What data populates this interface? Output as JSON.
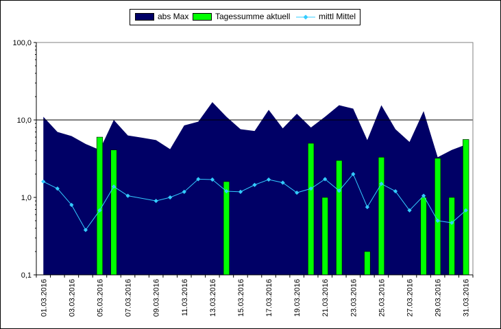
{
  "legend": {
    "items": [
      {
        "label": "abs Max",
        "color": "#000066"
      },
      {
        "label": "Tagessumme aktuell",
        "color": "#00ff00"
      },
      {
        "label": "mittl Mittel",
        "color": "#33ccff"
      }
    ]
  },
  "chart_data": {
    "type": "bar",
    "yscale": "log",
    "ylim": [
      0.1,
      100
    ],
    "y_tick_labels": [
      "0,1",
      "1,0",
      "10,0",
      "100,0"
    ],
    "grid": "horizontal at 10,0",
    "legend_position": "top",
    "x": [
      "01.03.2016",
      "02.03.2016",
      "03.03.2016",
      "04.03.2016",
      "05.03.2016",
      "06.03.2016",
      "07.03.2016",
      "08.03.2016",
      "09.03.2016",
      "10.03.2016",
      "11.03.2016",
      "12.03.2016",
      "13.03.2016",
      "14.03.2016",
      "15.03.2016",
      "16.03.2016",
      "17.03.2016",
      "18.03.2016",
      "19.03.2016",
      "20.03.2016",
      "21.03.2016",
      "22.03.2016",
      "23.03.2016",
      "24.03.2016",
      "25.03.2016",
      "26.03.2016",
      "27.03.2016",
      "28.03.2016",
      "29.03.2016",
      "30.03.2016",
      "31.03.2016"
    ],
    "x_tick_labels": [
      "01.03.2016",
      "03.03.2016",
      "05.03.2016",
      "07.03.2016",
      "09.03.2016",
      "11.03.2016",
      "13.03.2016",
      "15.03.2016",
      "17.03.2016",
      "19.03.2016",
      "21.03.2016",
      "23.03.2016",
      "25.03.2016",
      "27.03.2016",
      "29.03.2016",
      "31.03.2016"
    ],
    "series": [
      {
        "name": "abs Max",
        "type": "area",
        "color": "#000066",
        "values": [
          11,
          7,
          6.2,
          4.9,
          4.1,
          10,
          6.3,
          5.9,
          5.5,
          4.2,
          8.5,
          9.5,
          17,
          11,
          7.6,
          7.2,
          13.5,
          7.8,
          12,
          8,
          11,
          15.5,
          14,
          5.5,
          15.5,
          7.6,
          5.2,
          13,
          3.3,
          4.1,
          4.8
        ]
      },
      {
        "name": "Tagessumme aktuell",
        "type": "bar",
        "color": "#00ff00",
        "values": [
          null,
          null,
          null,
          null,
          6,
          4.1,
          null,
          null,
          null,
          null,
          null,
          null,
          null,
          1.6,
          null,
          null,
          null,
          null,
          null,
          5,
          1,
          3,
          null,
          0.2,
          3.3,
          null,
          null,
          1,
          3.2,
          1,
          5.6
        ]
      },
      {
        "name": "mittl Mittel",
        "type": "line",
        "color": "#33ccff",
        "values": [
          1.6,
          1.3,
          0.8,
          0.38,
          0.68,
          1.38,
          1.05,
          null,
          0.9,
          1.0,
          1.18,
          1.72,
          1.7,
          1.2,
          1.18,
          1.45,
          1.7,
          1.55,
          1.15,
          1.3,
          1.72,
          1.22,
          2.0,
          0.75,
          1.5,
          1.2,
          0.68,
          1.05,
          0.5,
          0.47,
          0.68
        ]
      }
    ]
  }
}
